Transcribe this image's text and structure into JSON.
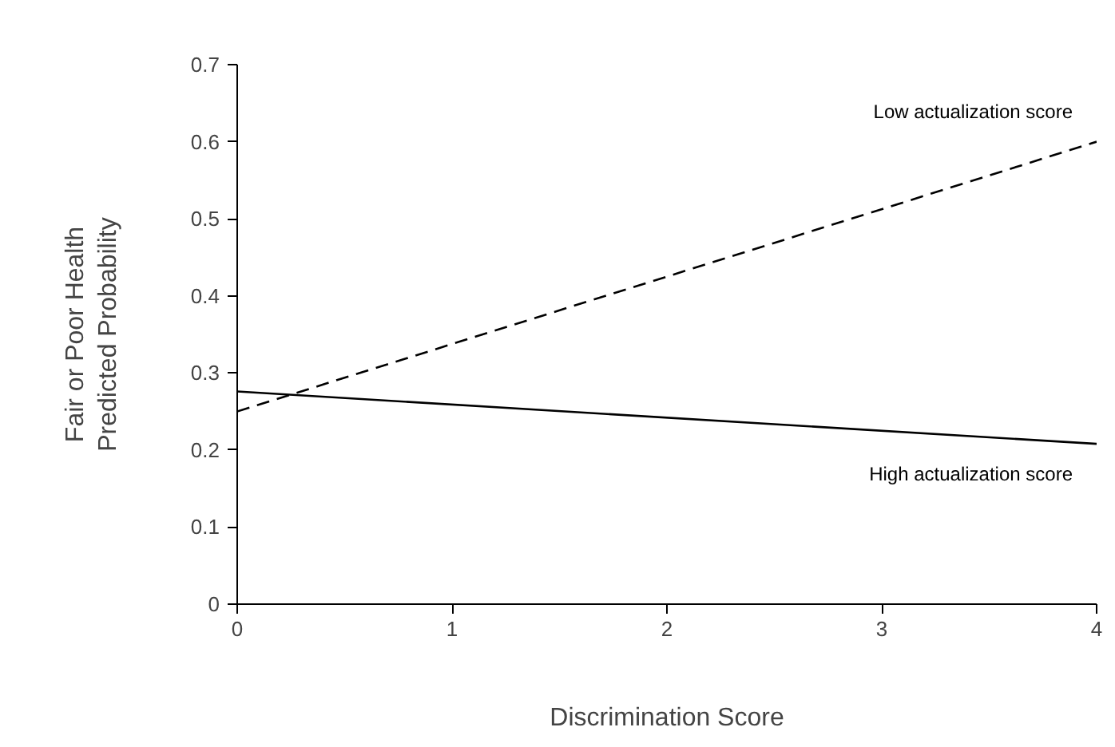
{
  "chart_data": {
    "type": "line",
    "xlabel": "Discrimination Score",
    "ylabel": "Fair or Poor Health\nPredicted Probability",
    "x": [
      0,
      4
    ],
    "series": [
      {
        "name": "Low actualization score",
        "color": "#000000",
        "line_style": "dashed",
        "values": [
          0.25,
          0.6
        ]
      },
      {
        "name": "High actualization score",
        "color": "#000000",
        "line_style": "solid",
        "values": [
          0.276,
          0.208
        ]
      }
    ],
    "xlim": [
      0,
      4
    ],
    "ylim": [
      0,
      0.7
    ],
    "xticks": [
      0,
      1,
      2,
      3,
      4
    ],
    "yticks": [
      0,
      0.1,
      0.2,
      0.3,
      0.4,
      0.5,
      0.6,
      0.7
    ],
    "grid": false
  }
}
